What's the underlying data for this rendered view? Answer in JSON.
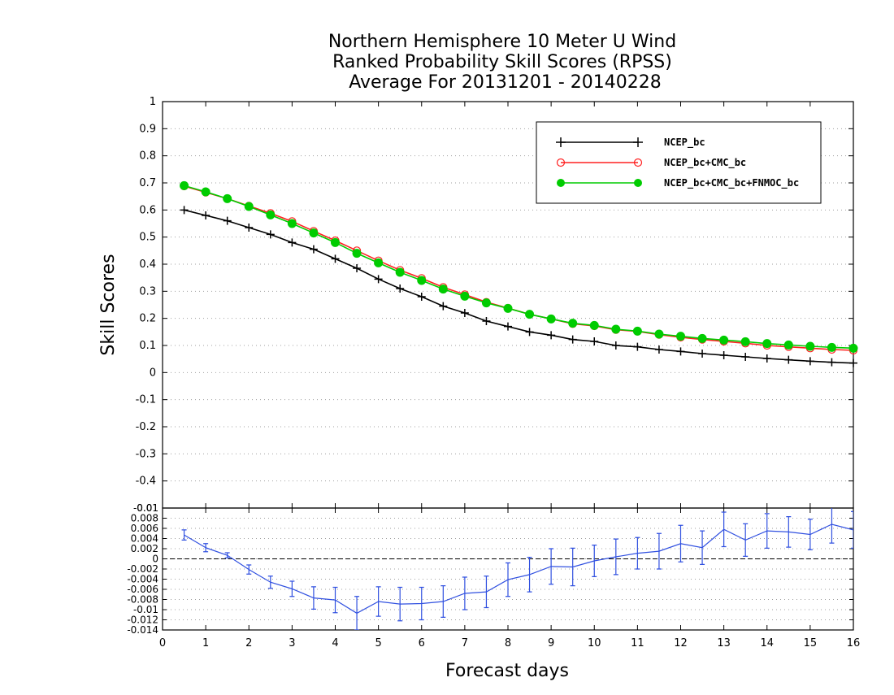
{
  "chart_data": [
    {
      "type": "line",
      "title": [
        "Northern Hemisphere 10 Meter U Wind",
        "Ranked Probability Skill Scores (RPSS)",
        " Average For 20131201 - 20140228"
      ],
      "xlabel": "Forecast days",
      "ylabel": "Skill Scores",
      "xlim": [
        0,
        16
      ],
      "ylim": [
        -0.5,
        1
      ],
      "x_ticks": [
        "0",
        "1",
        "2",
        "3",
        "4",
        "5",
        "6",
        "7",
        "8",
        "9",
        "10",
        "11",
        "12",
        "13",
        "14",
        "15",
        "16"
      ],
      "y_ticks": [
        "1",
        "0.9",
        "0.8",
        "0.7",
        "0.6",
        "0.5",
        "0.4",
        "0.3",
        "0.2",
        "0.1",
        "0",
        "-0.1",
        "-0.2",
        "-0.3",
        "-0.4"
      ],
      "grid": "dotted horizontal",
      "legend_position": "top-right",
      "x": [
        0.5,
        1,
        1.5,
        2,
        2.5,
        3,
        3.5,
        4,
        4.5,
        5,
        5.5,
        6,
        6.5,
        7,
        7.5,
        8,
        8.5,
        9,
        9.5,
        10,
        10.5,
        11,
        11.5,
        12,
        12.5,
        13,
        13.5,
        14,
        14.5,
        15,
        15.5,
        16
      ],
      "series": [
        {
          "name": "NCEP_bc",
          "color": "#000000",
          "marker": "plus",
          "values": [
            0.6,
            0.58,
            0.56,
            0.535,
            0.51,
            0.48,
            0.455,
            0.42,
            0.385,
            0.345,
            0.31,
            0.28,
            0.245,
            0.22,
            0.19,
            0.17,
            0.15,
            0.138,
            0.122,
            0.115,
            0.1,
            0.095,
            0.085,
            0.078,
            0.07,
            0.064,
            0.058,
            0.052,
            0.047,
            0.042,
            0.038,
            0.035
          ]
        },
        {
          "name": "NCEP_bc+CMC_bc",
          "color": "#ff2020",
          "marker": "open-circle",
          "values": [
            0.688,
            0.665,
            0.642,
            0.615,
            0.588,
            0.558,
            0.522,
            0.487,
            0.45,
            0.413,
            0.378,
            0.348,
            0.315,
            0.288,
            0.26,
            0.238,
            0.215,
            0.198,
            0.18,
            0.172,
            0.158,
            0.152,
            0.14,
            0.13,
            0.122,
            0.115,
            0.108,
            0.1,
            0.095,
            0.09,
            0.085,
            0.082
          ]
        },
        {
          "name": "NCEP_bc+CMC_bc+FNMOC_bc",
          "color": "#00cc00",
          "marker": "filled-circle",
          "values": [
            0.69,
            0.667,
            0.642,
            0.613,
            0.582,
            0.55,
            0.515,
            0.48,
            0.44,
            0.405,
            0.37,
            0.34,
            0.308,
            0.282,
            0.257,
            0.237,
            0.215,
            0.198,
            0.182,
            0.174,
            0.16,
            0.153,
            0.142,
            0.134,
            0.126,
            0.12,
            0.114,
            0.107,
            0.102,
            0.097,
            0.093,
            0.09
          ]
        }
      ]
    },
    {
      "type": "line",
      "title": "",
      "xlabel": "Forecast days",
      "ylabel": "",
      "xlim": [
        0,
        16
      ],
      "ylim": [
        -0.014,
        0.01
      ],
      "y_ticks": [
        "0.01",
        "0.008",
        "0.006",
        "0.004",
        "0.002",
        "0",
        "-0.002",
        "-0.004",
        "-0.006",
        "-0.008",
        "-0.01",
        "-0.012",
        "-0.014"
      ],
      "top_tick_overlap_label": "-0.01",
      "zero_line": "dashed",
      "grid": "dotted horizontal",
      "x": [
        0.5,
        1,
        1.5,
        2,
        2.5,
        3,
        3.5,
        4,
        4.5,
        5,
        5.5,
        6,
        6.5,
        7,
        7.5,
        8,
        8.5,
        9,
        9.5,
        10,
        10.5,
        11,
        11.5,
        12,
        12.5,
        13,
        13.5,
        14,
        14.5,
        15,
        15.5,
        16
      ],
      "series": [
        {
          "name": "",
          "color": "#3050e0",
          "marker": "error-bar",
          "values": [
            0.0047,
            0.0022,
            0.0007,
            -0.0021,
            -0.0046,
            -0.0059,
            -0.0077,
            -0.0081,
            -0.0107,
            -0.0084,
            -0.0089,
            -0.0088,
            -0.0084,
            -0.0068,
            -0.0065,
            -0.0041,
            -0.0031,
            -0.0015,
            -0.0016,
            -0.0004,
            0.0004,
            0.0011,
            0.0015,
            0.003,
            0.0022,
            0.0058,
            0.0037,
            0.0055,
            0.0053,
            0.0048,
            0.0068,
            0.0057
          ],
          "error": [
            0.001,
            0.0008,
            0.0005,
            0.0009,
            0.0012,
            0.0015,
            0.0022,
            0.0025,
            0.0033,
            0.0029,
            0.0033,
            0.0032,
            0.0031,
            0.0032,
            0.0031,
            0.0033,
            0.0034,
            0.0035,
            0.0037,
            0.0031,
            0.0035,
            0.0031,
            0.0035,
            0.0036,
            0.0033,
            0.0034,
            0.0032,
            0.0034,
            0.003,
            0.003,
            0.0037,
            0.0036
          ]
        }
      ]
    }
  ]
}
